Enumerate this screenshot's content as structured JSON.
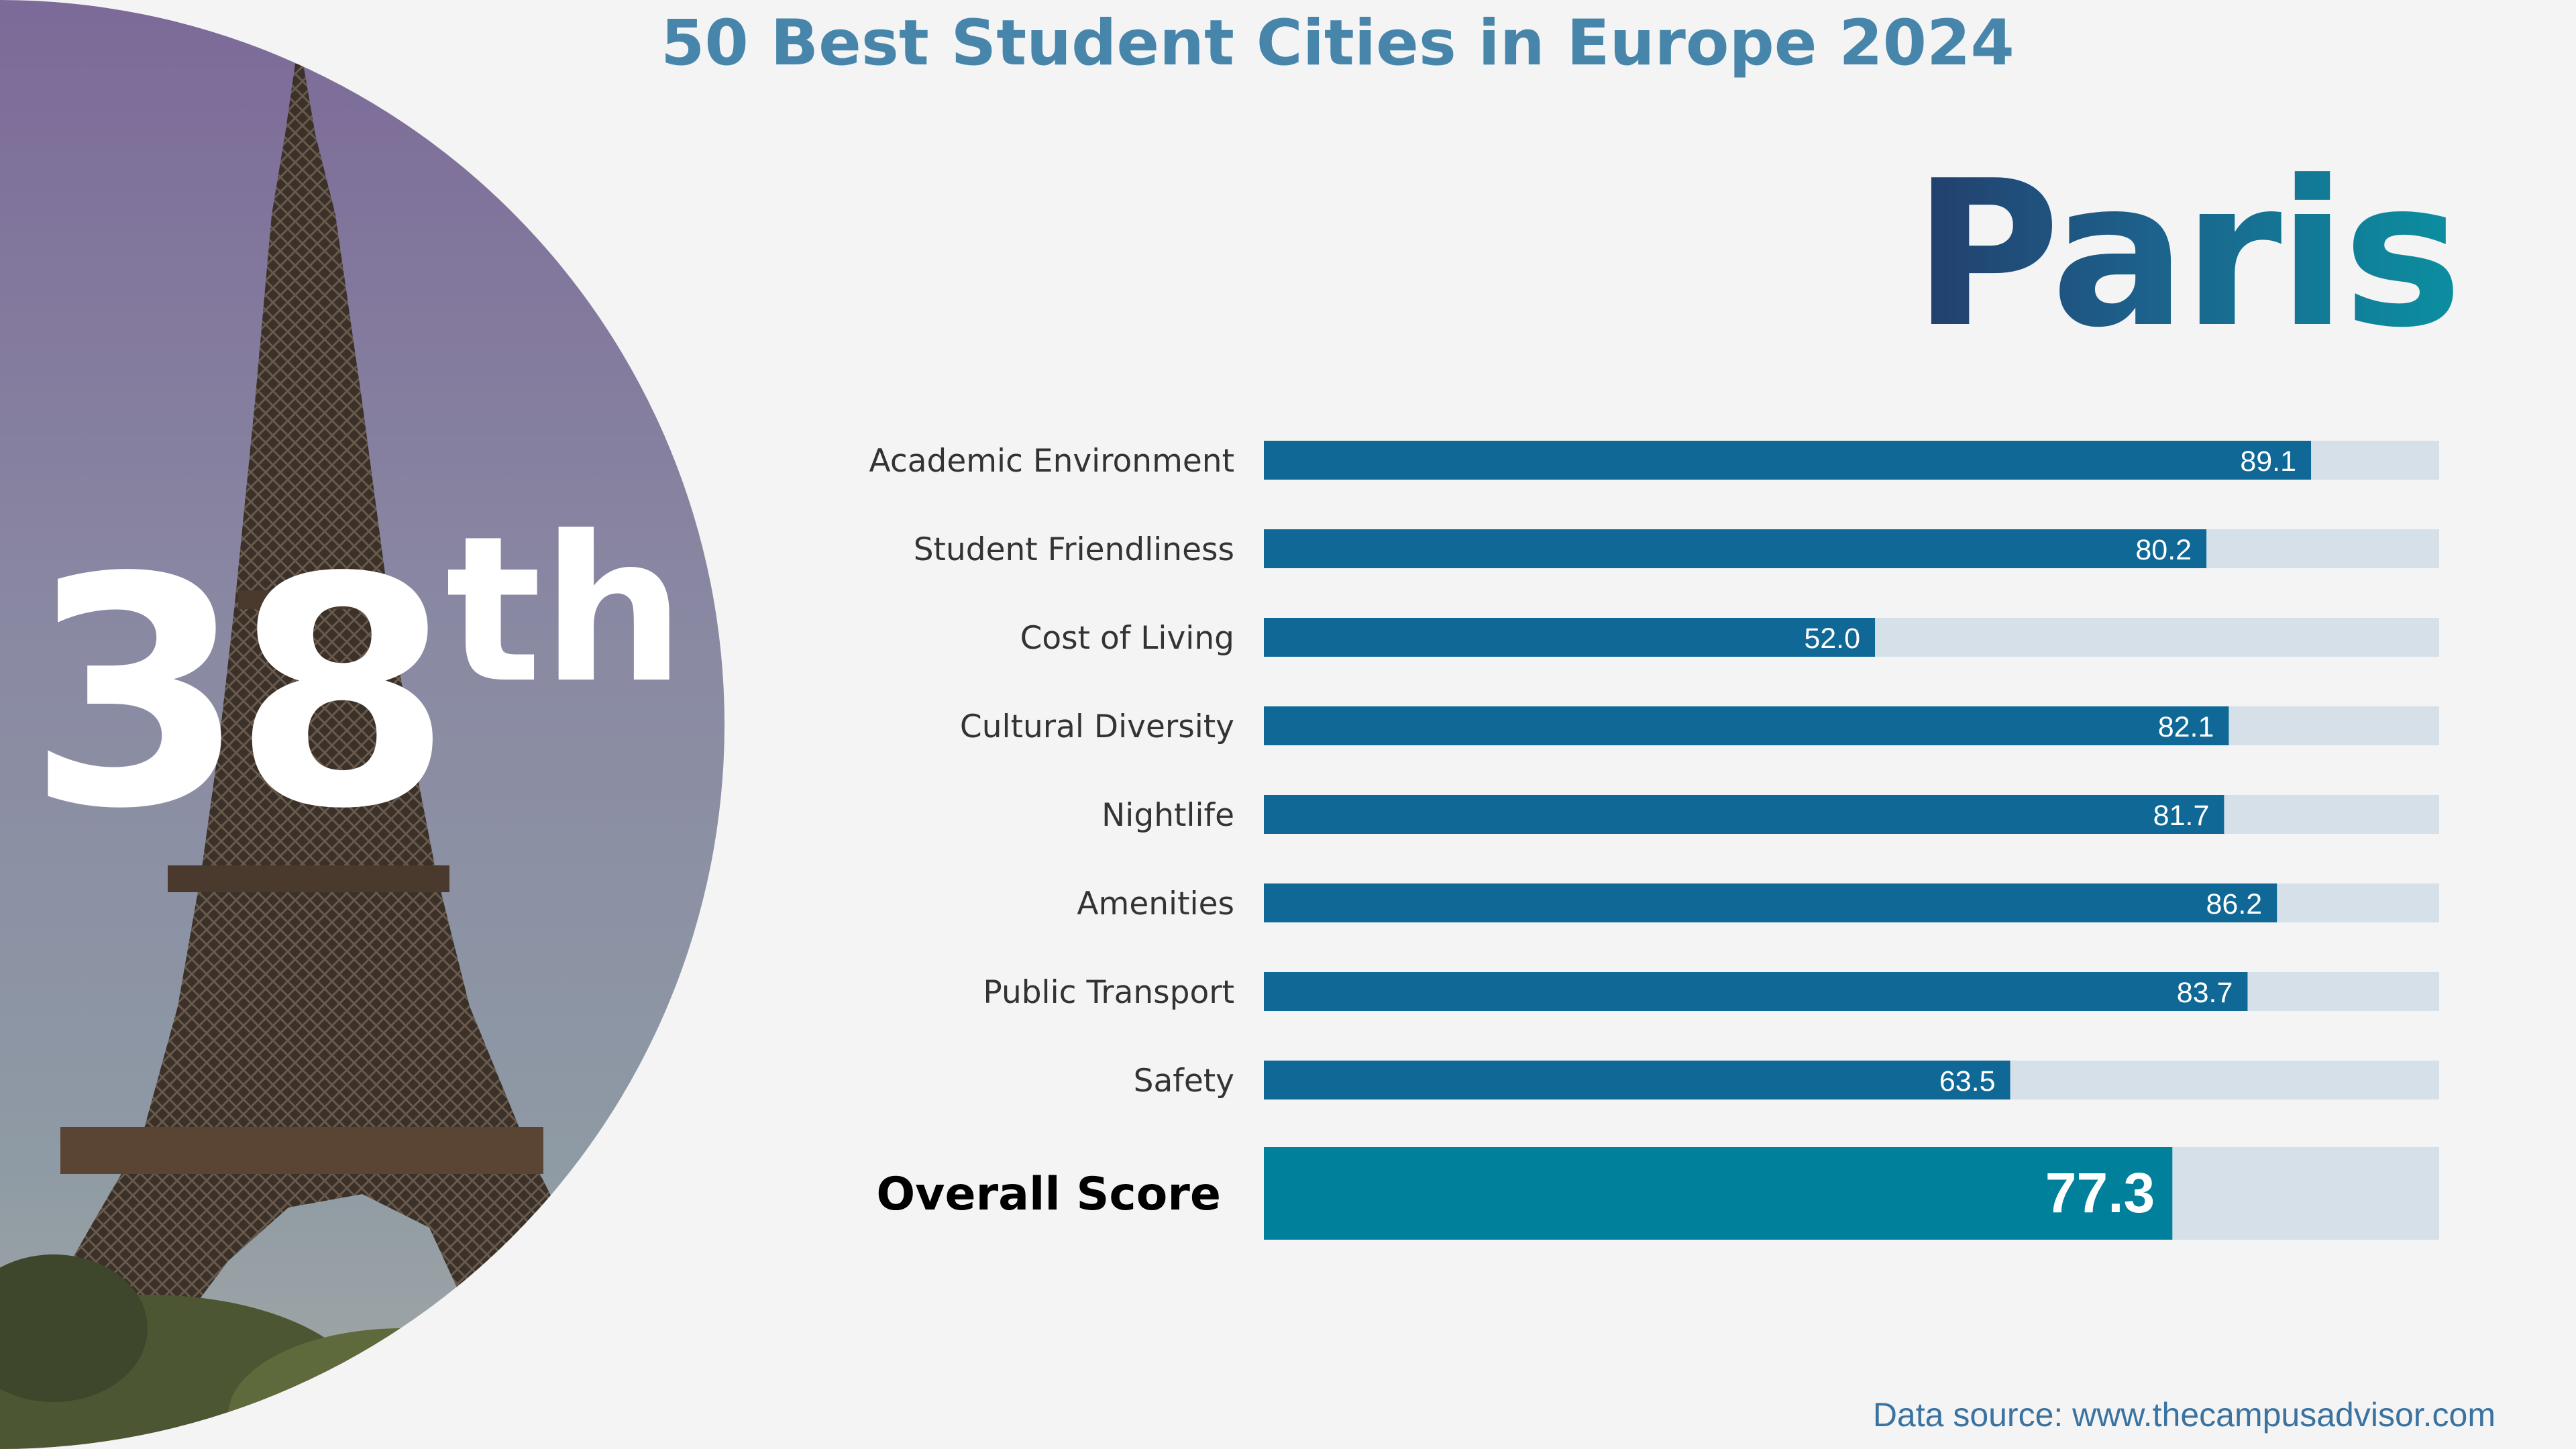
{
  "title": "50 Best Student Cities in Europe 2024",
  "city": "Paris",
  "rank": {
    "number": "38",
    "suffix": "th"
  },
  "source": "Data source: www.thecampusadvisor.com",
  "colors": {
    "bar": "#0f6895",
    "track": "#d5e0e8",
    "overall": "#00809a",
    "title": "#4786aa"
  },
  "chart_data": {
    "type": "bar",
    "orientation": "horizontal",
    "categories": [
      "Academic Environment",
      "Student Friendliness",
      "Cost of Living",
      "Cultural Diversity",
      "Nightlife",
      "Amenities",
      "Public Transport",
      "Safety"
    ],
    "values": [
      89.1,
      80.2,
      52.0,
      82.1,
      81.7,
      86.2,
      83.7,
      63.5
    ],
    "value_labels": [
      "89.1",
      "80.2",
      "52.0",
      "82.1",
      "81.7",
      "86.2",
      "83.7",
      "63.5"
    ],
    "overall": {
      "label": "Overall Score",
      "value": 77.3,
      "value_label": "77.3"
    },
    "xlim": [
      0,
      100
    ],
    "title": "",
    "xlabel": "",
    "ylabel": ""
  }
}
